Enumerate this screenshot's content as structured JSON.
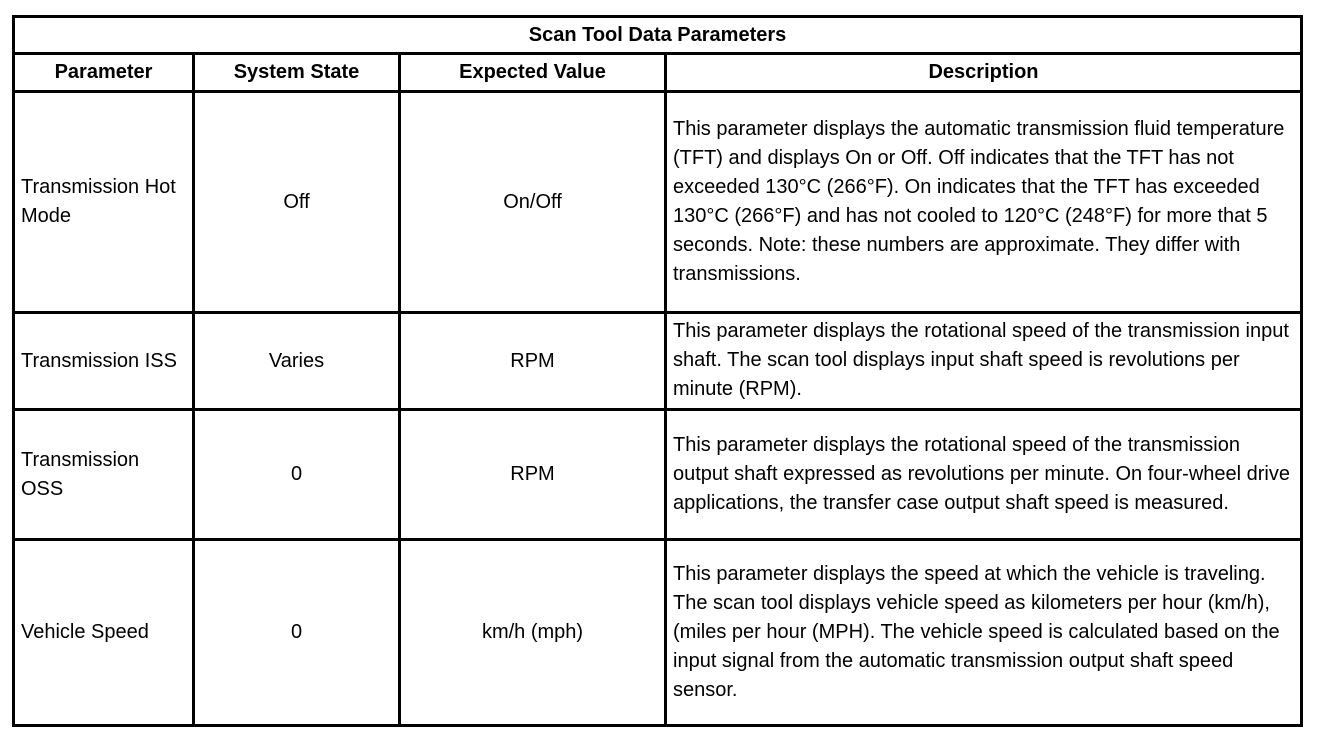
{
  "table": {
    "title": "Scan Tool Data Parameters",
    "headers": [
      "Parameter",
      "System State",
      "Expected Value",
      "Description"
    ],
    "rows": [
      {
        "parameter": "Transmission Hot Mode",
        "system_state": "Off",
        "expected_value": "On/Off",
        "description": "This parameter displays the automatic transmission fluid temperature (TFT) and displays On or Off. Off indicates that the TFT has not exceeded 130°C (266°F). On indicates that the TFT has exceeded 130°C (266°F) and has not cooled to 120°C (248°F) for more that 5 seconds. Note: these numbers are approximate. They differ with transmissions."
      },
      {
        "parameter": "Transmission ISS",
        "system_state": "Varies",
        "expected_value": "RPM",
        "description": "This parameter displays the rotational speed of the transmission input shaft. The scan tool displays input shaft speed is revolutions per minute (RPM)."
      },
      {
        "parameter": "Transmission OSS",
        "system_state": "0",
        "expected_value": "RPM",
        "description": "This parameter displays the rotational speed of the transmission output shaft expressed as revolutions per minute. On four-wheel drive applications, the transfer case output shaft speed is measured."
      },
      {
        "parameter": "Vehicle Speed",
        "system_state": "0",
        "expected_value": "km/h (mph)",
        "description": "This parameter displays the speed at which the vehicle is traveling. The scan tool displays vehicle speed as kilometers per hour (km/h), (miles per hour (MPH). The vehicle speed is calculated based on the input signal from the automatic transmission output shaft speed sensor."
      }
    ]
  }
}
